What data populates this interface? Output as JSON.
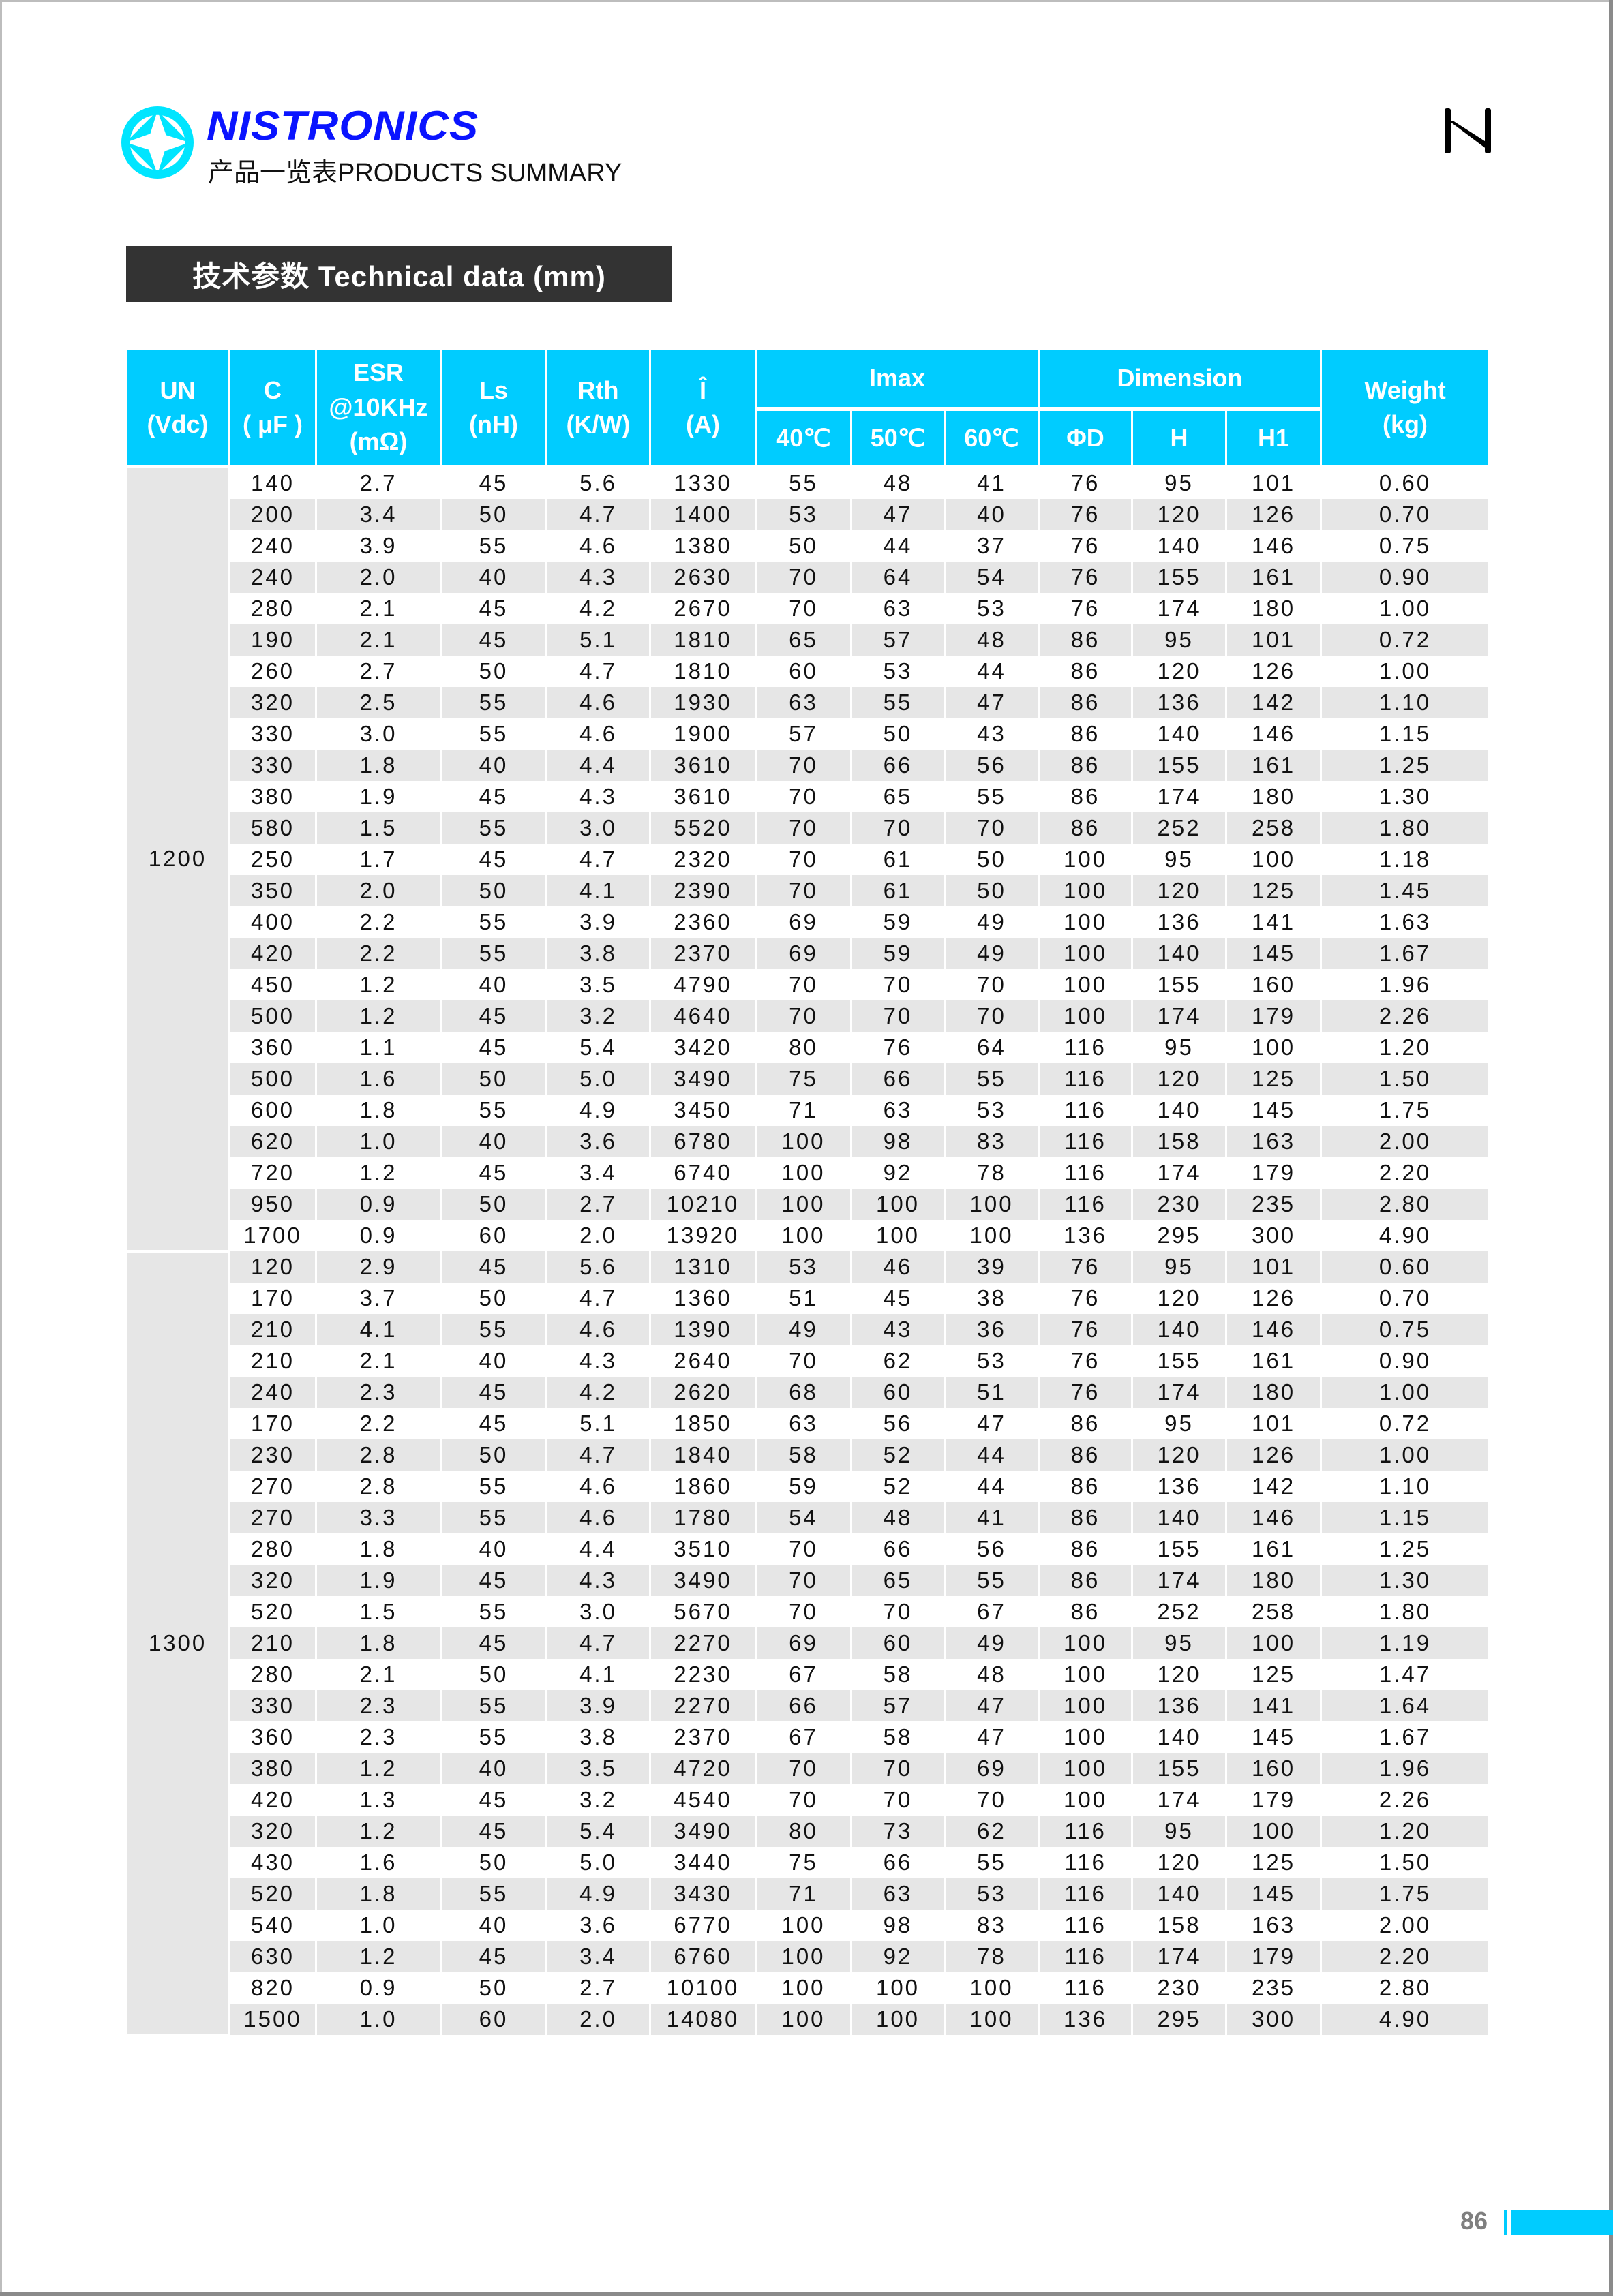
{
  "header": {
    "brand": "NISTRONICS",
    "subtitle": "产品一览表PRODUCTS SUMMARY",
    "brand_color": "#0a14ff",
    "accent_color": "#00ccff"
  },
  "section_title": "技术参数 Technical data (mm)",
  "table": {
    "headers": {
      "un": "UN",
      "un_unit": "(Vdc)",
      "c": "C",
      "c_unit": "( μF )",
      "esr": "ESR",
      "esr_freq": "@10KHz",
      "esr_unit": "(mΩ)",
      "ls": "Ls",
      "ls_unit": "(nH)",
      "rth": "Rth",
      "rth_unit": "(K/W)",
      "ipk": "Î",
      "ipk_unit": "(A)",
      "imax": "Imax",
      "t40": "40℃",
      "t50": "50℃",
      "t60": "60℃",
      "dimension": "Dimension",
      "d": "ΦD",
      "h": "H",
      "h1": "H1",
      "weight": "Weight",
      "weight_unit": "(kg)"
    },
    "groups": [
      {
        "un": "1200",
        "rows": [
          [
            "140",
            "2.7",
            "45",
            "5.6",
            "1330",
            "55",
            "48",
            "41",
            "76",
            "95",
            "101",
            "0.60"
          ],
          [
            "200",
            "3.4",
            "50",
            "4.7",
            "1400",
            "53",
            "47",
            "40",
            "76",
            "120",
            "126",
            "0.70"
          ],
          [
            "240",
            "3.9",
            "55",
            "4.6",
            "1380",
            "50",
            "44",
            "37",
            "76",
            "140",
            "146",
            "0.75"
          ],
          [
            "240",
            "2.0",
            "40",
            "4.3",
            "2630",
            "70",
            "64",
            "54",
            "76",
            "155",
            "161",
            "0.90"
          ],
          [
            "280",
            "2.1",
            "45",
            "4.2",
            "2670",
            "70",
            "63",
            "53",
            "76",
            "174",
            "180",
            "1.00"
          ],
          [
            "190",
            "2.1",
            "45",
            "5.1",
            "1810",
            "65",
            "57",
            "48",
            "86",
            "95",
            "101",
            "0.72"
          ],
          [
            "260",
            "2.7",
            "50",
            "4.7",
            "1810",
            "60",
            "53",
            "44",
            "86",
            "120",
            "126",
            "1.00"
          ],
          [
            "320",
            "2.5",
            "55",
            "4.6",
            "1930",
            "63",
            "55",
            "47",
            "86",
            "136",
            "142",
            "1.10"
          ],
          [
            "330",
            "3.0",
            "55",
            "4.6",
            "1900",
            "57",
            "50",
            "43",
            "86",
            "140",
            "146",
            "1.15"
          ],
          [
            "330",
            "1.8",
            "40",
            "4.4",
            "3610",
            "70",
            "66",
            "56",
            "86",
            "155",
            "161",
            "1.25"
          ],
          [
            "380",
            "1.9",
            "45",
            "4.3",
            "3610",
            "70",
            "65",
            "55",
            "86",
            "174",
            "180",
            "1.30"
          ],
          [
            "580",
            "1.5",
            "55",
            "3.0",
            "5520",
            "70",
            "70",
            "70",
            "86",
            "252",
            "258",
            "1.80"
          ],
          [
            "250",
            "1.7",
            "45",
            "4.7",
            "2320",
            "70",
            "61",
            "50",
            "100",
            "95",
            "100",
            "1.18"
          ],
          [
            "350",
            "2.0",
            "50",
            "4.1",
            "2390",
            "70",
            "61",
            "50",
            "100",
            "120",
            "125",
            "1.45"
          ],
          [
            "400",
            "2.2",
            "55",
            "3.9",
            "2360",
            "69",
            "59",
            "49",
            "100",
            "136",
            "141",
            "1.63"
          ],
          [
            "420",
            "2.2",
            "55",
            "3.8",
            "2370",
            "69",
            "59",
            "49",
            "100",
            "140",
            "145",
            "1.67"
          ],
          [
            "450",
            "1.2",
            "40",
            "3.5",
            "4790",
            "70",
            "70",
            "70",
            "100",
            "155",
            "160",
            "1.96"
          ],
          [
            "500",
            "1.2",
            "45",
            "3.2",
            "4640",
            "70",
            "70",
            "70",
            "100",
            "174",
            "179",
            "2.26"
          ],
          [
            "360",
            "1.1",
            "45",
            "5.4",
            "3420",
            "80",
            "76",
            "64",
            "116",
            "95",
            "100",
            "1.20"
          ],
          [
            "500",
            "1.6",
            "50",
            "5.0",
            "3490",
            "75",
            "66",
            "55",
            "116",
            "120",
            "125",
            "1.50"
          ],
          [
            "600",
            "1.8",
            "55",
            "4.9",
            "3450",
            "71",
            "63",
            "53",
            "116",
            "140",
            "145",
            "1.75"
          ],
          [
            "620",
            "1.0",
            "40",
            "3.6",
            "6780",
            "100",
            "98",
            "83",
            "116",
            "158",
            "163",
            "2.00"
          ],
          [
            "720",
            "1.2",
            "45",
            "3.4",
            "6740",
            "100",
            "92",
            "78",
            "116",
            "174",
            "179",
            "2.20"
          ],
          [
            "950",
            "0.9",
            "50",
            "2.7",
            "10210",
            "100",
            "100",
            "100",
            "116",
            "230",
            "235",
            "2.80"
          ],
          [
            "1700",
            "0.9",
            "60",
            "2.0",
            "13920",
            "100",
            "100",
            "100",
            "136",
            "295",
            "300",
            "4.90"
          ]
        ]
      },
      {
        "un": "1300",
        "rows": [
          [
            "120",
            "2.9",
            "45",
            "5.6",
            "1310",
            "53",
            "46",
            "39",
            "76",
            "95",
            "101",
            "0.60"
          ],
          [
            "170",
            "3.7",
            "50",
            "4.7",
            "1360",
            "51",
            "45",
            "38",
            "76",
            "120",
            "126",
            "0.70"
          ],
          [
            "210",
            "4.1",
            "55",
            "4.6",
            "1390",
            "49",
            "43",
            "36",
            "76",
            "140",
            "146",
            "0.75"
          ],
          [
            "210",
            "2.1",
            "40",
            "4.3",
            "2640",
            "70",
            "62",
            "53",
            "76",
            "155",
            "161",
            "0.90"
          ],
          [
            "240",
            "2.3",
            "45",
            "4.2",
            "2620",
            "68",
            "60",
            "51",
            "76",
            "174",
            "180",
            "1.00"
          ],
          [
            "170",
            "2.2",
            "45",
            "5.1",
            "1850",
            "63",
            "56",
            "47",
            "86",
            "95",
            "101",
            "0.72"
          ],
          [
            "230",
            "2.8",
            "50",
            "4.7",
            "1840",
            "58",
            "52",
            "44",
            "86",
            "120",
            "126",
            "1.00"
          ],
          [
            "270",
            "2.8",
            "55",
            "4.6",
            "1860",
            "59",
            "52",
            "44",
            "86",
            "136",
            "142",
            "1.10"
          ],
          [
            "270",
            "3.3",
            "55",
            "4.6",
            "1780",
            "54",
            "48",
            "41",
            "86",
            "140",
            "146",
            "1.15"
          ],
          [
            "280",
            "1.8",
            "40",
            "4.4",
            "3510",
            "70",
            "66",
            "56",
            "86",
            "155",
            "161",
            "1.25"
          ],
          [
            "320",
            "1.9",
            "45",
            "4.3",
            "3490",
            "70",
            "65",
            "55",
            "86",
            "174",
            "180",
            "1.30"
          ],
          [
            "520",
            "1.5",
            "55",
            "3.0",
            "5670",
            "70",
            "70",
            "67",
            "86",
            "252",
            "258",
            "1.80"
          ],
          [
            "210",
            "1.8",
            "45",
            "4.7",
            "2270",
            "69",
            "60",
            "49",
            "100",
            "95",
            "100",
            "1.19"
          ],
          [
            "280",
            "2.1",
            "50",
            "4.1",
            "2230",
            "67",
            "58",
            "48",
            "100",
            "120",
            "125",
            "1.47"
          ],
          [
            "330",
            "2.3",
            "55",
            "3.9",
            "2270",
            "66",
            "57",
            "47",
            "100",
            "136",
            "141",
            "1.64"
          ],
          [
            "360",
            "2.3",
            "55",
            "3.8",
            "2370",
            "67",
            "58",
            "47",
            "100",
            "140",
            "145",
            "1.67"
          ],
          [
            "380",
            "1.2",
            "40",
            "3.5",
            "4720",
            "70",
            "70",
            "69",
            "100",
            "155",
            "160",
            "1.96"
          ],
          [
            "420",
            "1.3",
            "45",
            "3.2",
            "4540",
            "70",
            "70",
            "70",
            "100",
            "174",
            "179",
            "2.26"
          ],
          [
            "320",
            "1.2",
            "45",
            "5.4",
            "3490",
            "80",
            "73",
            "62",
            "116",
            "95",
            "100",
            "1.20"
          ],
          [
            "430",
            "1.6",
            "50",
            "5.0",
            "3440",
            "75",
            "66",
            "55",
            "116",
            "120",
            "125",
            "1.50"
          ],
          [
            "520",
            "1.8",
            "55",
            "4.9",
            "3430",
            "71",
            "63",
            "53",
            "116",
            "140",
            "145",
            "1.75"
          ],
          [
            "540",
            "1.0",
            "40",
            "3.6",
            "6770",
            "100",
            "98",
            "83",
            "116",
            "158",
            "163",
            "2.00"
          ],
          [
            "630",
            "1.2",
            "45",
            "3.4",
            "6760",
            "100",
            "92",
            "78",
            "116",
            "174",
            "179",
            "2.20"
          ],
          [
            "820",
            "0.9",
            "50",
            "2.7",
            "10100",
            "100",
            "100",
            "100",
            "116",
            "230",
            "235",
            "2.80"
          ],
          [
            "1500",
            "1.0",
            "60",
            "2.0",
            "14080",
            "100",
            "100",
            "100",
            "136",
            "295",
            "300",
            "4.90"
          ]
        ]
      }
    ]
  },
  "footer": {
    "page_number": "86"
  }
}
